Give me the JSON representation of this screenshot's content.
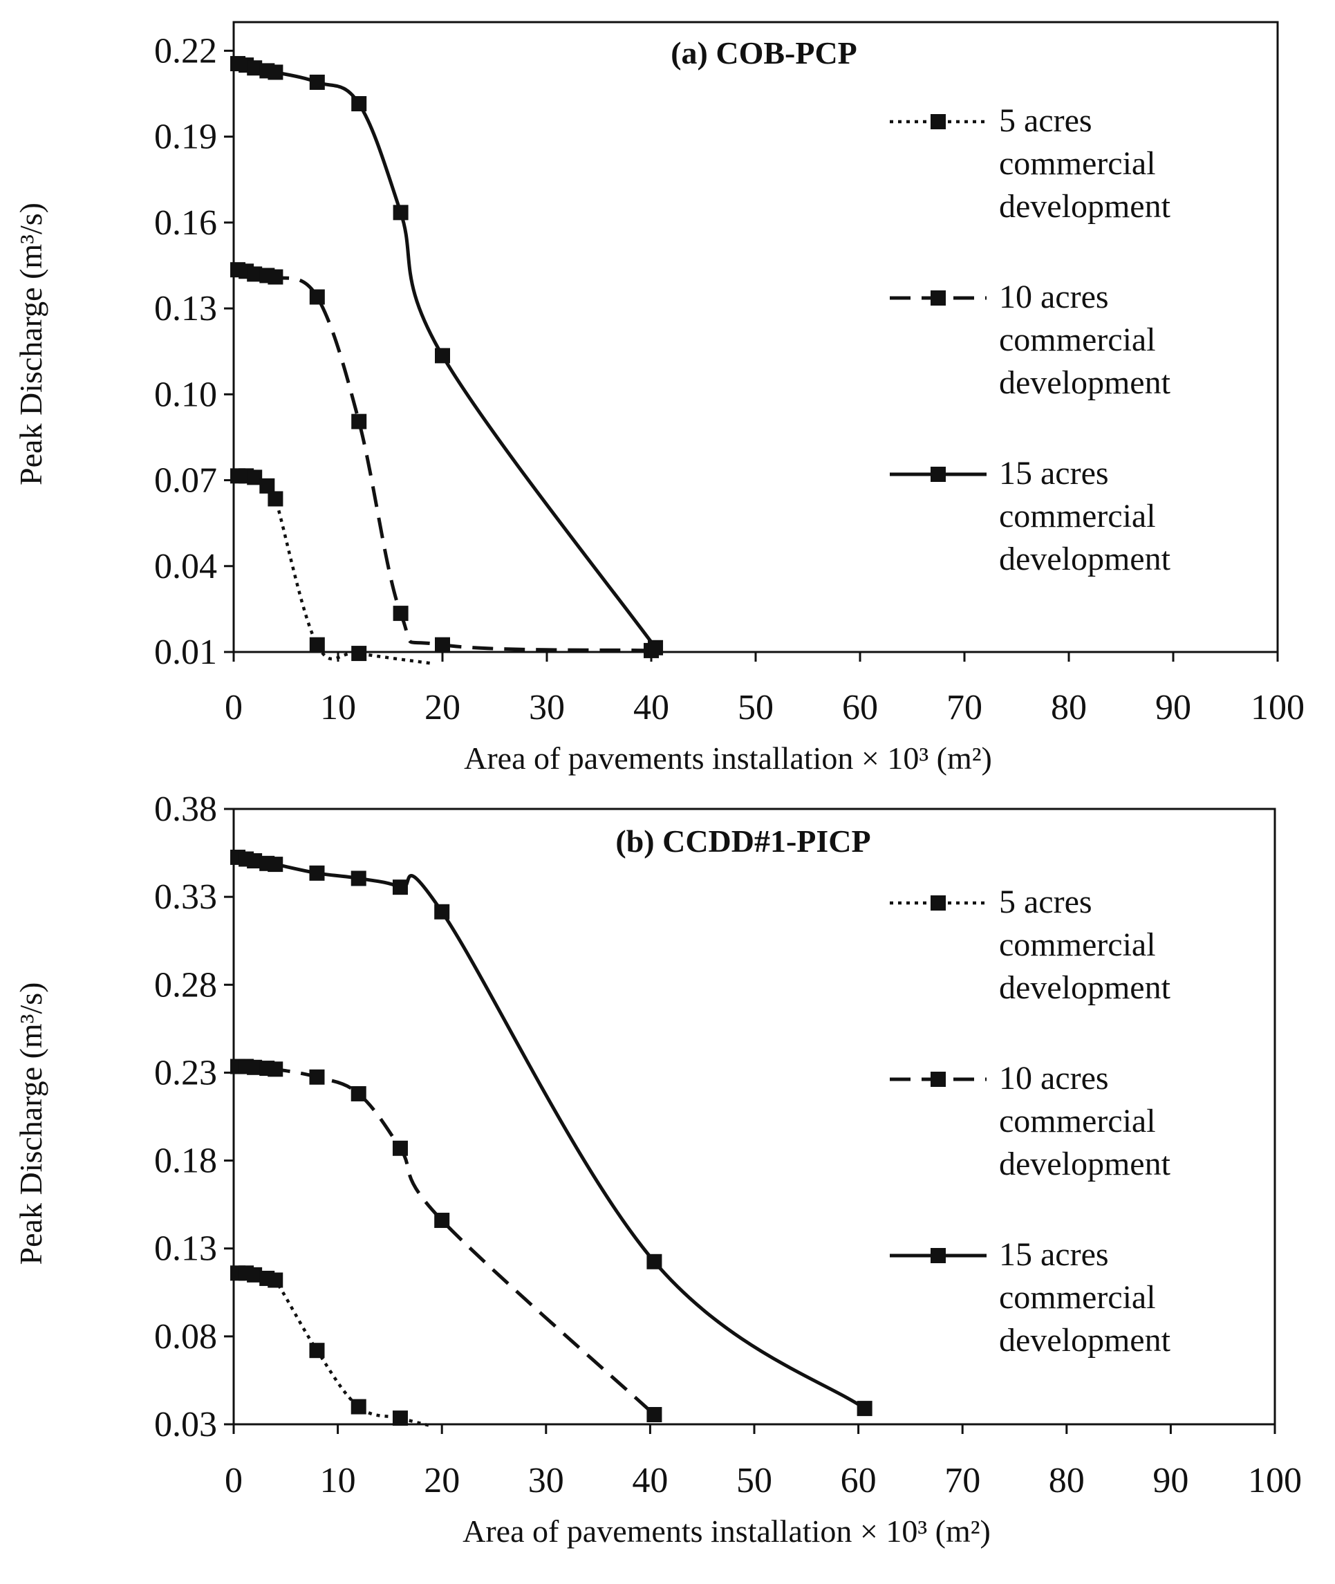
{
  "chart_data": [
    {
      "type": "line",
      "title": "(a) COB-PCP",
      "xlabel": "Area of pavements installation × 10³ (m²)",
      "ylabel": "Peak Discharge (m³/s)",
      "xlim": [
        0,
        100
      ],
      "ylim": [
        0.01,
        0.23
      ],
      "x_ticks": [
        "0",
        "10",
        "20",
        "30",
        "40",
        "50",
        "60",
        "70",
        "80",
        "90",
        "100"
      ],
      "y_ticks": [
        "0.01",
        "0.04",
        "0.07",
        "0.10",
        "0.13",
        "0.16",
        "0.19",
        "0.22"
      ],
      "legend_position": "right",
      "grid": false,
      "series": [
        {
          "name": [
            "5 acres",
            "commercial",
            "development"
          ],
          "style": "dotted",
          "points": [
            [
              0.4,
              0.0715
            ],
            [
              1.2,
              0.0715
            ],
            [
              2.0,
              0.071
            ],
            [
              3.2,
              0.068
            ],
            [
              4.0,
              0.0635
            ],
            [
              8.0,
              0.0125
            ],
            [
              12.0,
              0.0095
            ]
          ],
          "trail": [
            [
              19,
              0.006
            ]
          ]
        },
        {
          "name": [
            "10 acres",
            "commercial",
            "development"
          ],
          "style": "dashed",
          "points": [
            [
              0.4,
              0.1435
            ],
            [
              1.2,
              0.143
            ],
            [
              2.0,
              0.142
            ],
            [
              3.2,
              0.1415
            ],
            [
              4.0,
              0.141
            ],
            [
              8.0,
              0.134
            ],
            [
              12.0,
              0.0905
            ],
            [
              16.0,
              0.0235
            ],
            [
              20.0,
              0.0125
            ],
            [
              40.0,
              0.0105
            ]
          ],
          "trail": []
        },
        {
          "name": [
            "15 acres",
            "commercial",
            "development"
          ],
          "style": "solid",
          "points": [
            [
              0.4,
              0.2155
            ],
            [
              1.2,
              0.215
            ],
            [
              2.0,
              0.214
            ],
            [
              3.2,
              0.213
            ],
            [
              4.0,
              0.2125
            ],
            [
              8.0,
              0.209
            ],
            [
              12.0,
              0.2015
            ],
            [
              16.0,
              0.1635
            ],
            [
              20.0,
              0.1135
            ],
            [
              40.4,
              0.0115
            ]
          ],
          "trail": []
        }
      ]
    },
    {
      "type": "line",
      "title": "(b) CCDD#1-PICP",
      "xlabel": "Area of pavements installation × 10³ (m²)",
      "ylabel": "Peak Discharge (m³/s)",
      "xlim": [
        0,
        100
      ],
      "ylim": [
        0.03,
        0.38
      ],
      "x_ticks": [
        "0",
        "10",
        "20",
        "30",
        "40",
        "50",
        "60",
        "70",
        "80",
        "90",
        "100"
      ],
      "y_ticks": [
        "0.03",
        "0.08",
        "0.13",
        "0.18",
        "0.23",
        "0.28",
        "0.33",
        "0.38"
      ],
      "legend_position": "right",
      "grid": false,
      "series": [
        {
          "name": [
            "5 acres",
            "commercial",
            "development"
          ],
          "style": "dotted",
          "points": [
            [
              0.4,
              0.116
            ],
            [
              1.2,
              0.116
            ],
            [
              2.0,
              0.115
            ],
            [
              3.2,
              0.113
            ],
            [
              4.0,
              0.112
            ],
            [
              8.0,
              0.072
            ],
            [
              12.0,
              0.04
            ],
            [
              16.0,
              0.0335
            ]
          ],
          "trail": [
            [
              19.0,
              0.029
            ]
          ]
        },
        {
          "name": [
            "10 acres",
            "commercial",
            "development"
          ],
          "style": "dashed",
          "points": [
            [
              0.4,
              0.2335
            ],
            [
              1.2,
              0.2335
            ],
            [
              2.0,
              0.233
            ],
            [
              3.2,
              0.2325
            ],
            [
              4.0,
              0.232
            ],
            [
              8.0,
              0.2275
            ],
            [
              12.0,
              0.218
            ],
            [
              16.0,
              0.187
            ],
            [
              20.0,
              0.146
            ],
            [
              40.4,
              0.0355
            ]
          ],
          "trail": []
        },
        {
          "name": [
            "15 acres",
            "commercial",
            "development"
          ],
          "style": "solid",
          "points": [
            [
              0.4,
              0.3525
            ],
            [
              1.2,
              0.3515
            ],
            [
              2.0,
              0.3505
            ],
            [
              3.2,
              0.349
            ],
            [
              4.0,
              0.3485
            ],
            [
              8.0,
              0.3435
            ],
            [
              12.0,
              0.3405
            ],
            [
              16.0,
              0.3355
            ],
            [
              20.0,
              0.3215
            ],
            [
              40.4,
              0.1225
            ],
            [
              60.6,
              0.039
            ]
          ],
          "trail": []
        }
      ]
    }
  ]
}
